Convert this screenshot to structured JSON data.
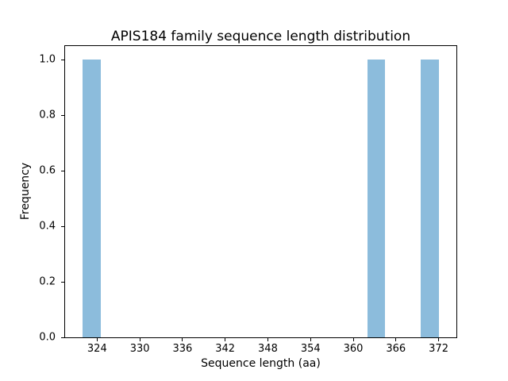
{
  "figure": {
    "background": "#ffffff"
  },
  "chart_data": {
    "type": "bar",
    "title": "APIS184 family sequence length distribution",
    "xlabel": "Sequence length (aa)",
    "ylabel": "Frequency",
    "xlim": [
      319.5,
      374.5
    ],
    "ylim": [
      0,
      1.05
    ],
    "x_ticks": [
      "324",
      "330",
      "336",
      "342",
      "348",
      "354",
      "360",
      "366",
      "372"
    ],
    "y_ticks": [
      "0.0",
      "0.2",
      "0.4",
      "0.6",
      "0.8",
      "1.0"
    ],
    "grid": false,
    "bar_color": "#8cbcdc",
    "axis_color": "#000000",
    "bars": [
      {
        "x_start": 322.0,
        "x_end": 324.5,
        "frequency": 1.0
      },
      {
        "x_start": 362.0,
        "x_end": 364.5,
        "frequency": 1.0
      },
      {
        "x_start": 369.5,
        "x_end": 372.0,
        "frequency": 1.0
      }
    ]
  }
}
